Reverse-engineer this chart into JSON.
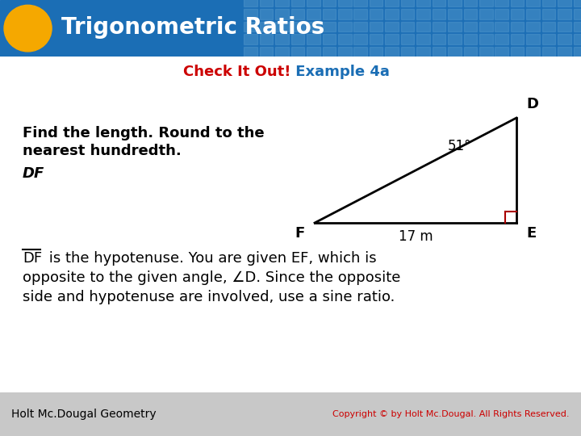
{
  "title": "Trigonometric Ratios",
  "subtitle_red": "Check It Out!",
  "subtitle_rest": " Example 4a",
  "heading_bg_color": "#1b6eb5",
  "heading_text_color": "#ffffff",
  "oval_color": "#f5a800",
  "body_bg_color": "#ffffff",
  "find_text_line1": "Find the length. Round to the",
  "find_text_line2": "nearest hundredth.",
  "df_label": "DF",
  "body_line1": " is the hypotenuse. You are given EF, which is",
  "body_line2": "opposite to the given angle, ∠D. Since the opposite",
  "body_line3": "side and hypotenuse are involved, use a sine ratio.",
  "footer_text": "Holt Mc.Dougal Geometry",
  "footer_copyright": "Copyright © by Holt Mc.Dougal. All Rights Reserved.",
  "footer_bg_color": "#c8c8c8",
  "check_it_out_color": "#cc0000",
  "example_color": "#1b6eb5",
  "subtitle_color": "#1b6eb5",
  "grid_line_color": "#5599cc",
  "right_angle_color": "#aa0000",
  "triangle_line_color": "#000000",
  "angle_label": "51°",
  "side_label": "17 m"
}
